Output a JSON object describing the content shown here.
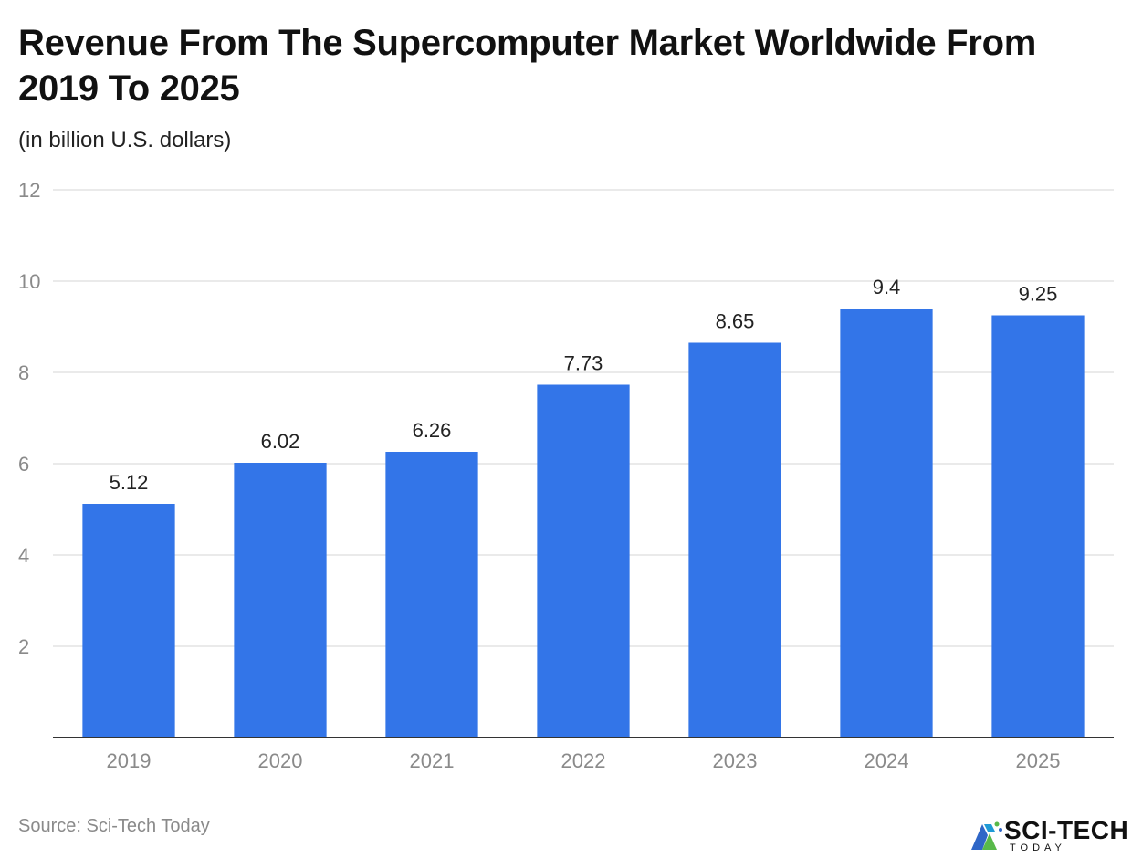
{
  "header": {
    "title": "Revenue From The Supercomputer Market Worldwide From 2019 To 2025",
    "subtitle": "(in billion U.S. dollars)"
  },
  "footer": {
    "source": "Source: Sci-Tech Today",
    "logo_text": "SCI-TECH",
    "logo_sub": "TODAY"
  },
  "chart_data": {
    "type": "bar",
    "title": "Revenue From The Supercomputer Market Worldwide From 2019 To 2025",
    "subtitle": "(in billion U.S. dollars)",
    "xlabel": "",
    "ylabel": "",
    "categories": [
      "2019",
      "2020",
      "2021",
      "2022",
      "2023",
      "2024",
      "2025"
    ],
    "values": [
      5.12,
      6.02,
      6.26,
      7.73,
      8.65,
      9.4,
      9.25
    ],
    "value_labels": [
      "5.12",
      "6.02",
      "6.26",
      "7.73",
      "8.65",
      "9.4",
      "9.25"
    ],
    "ylim": [
      0,
      12
    ],
    "yticks": [
      2,
      4,
      6,
      8,
      10,
      12
    ],
    "grid": true,
    "legend": "none",
    "colors": {
      "bar": "#3375e8",
      "grid": "#e3e3e3",
      "axis": "#333333",
      "tick_label": "#8a8a8a"
    }
  }
}
